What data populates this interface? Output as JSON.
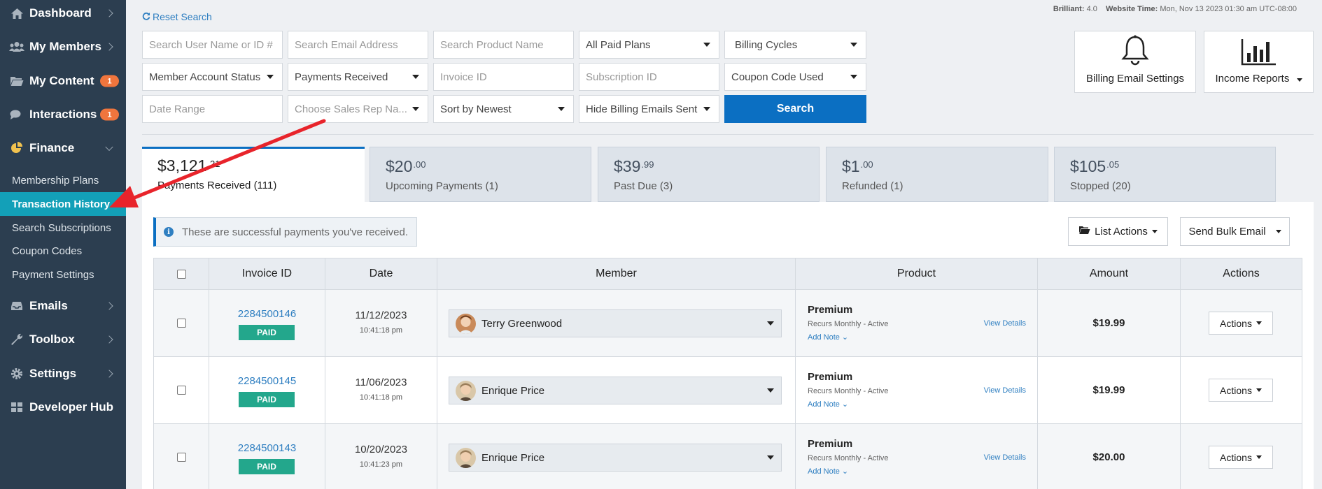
{
  "sidebar": {
    "items": [
      {
        "label": "Dashboard",
        "icon": "home-icon"
      },
      {
        "label": "My Members",
        "icon": "users-icon"
      },
      {
        "label": "My Content",
        "icon": "folder-icon",
        "badge": "1"
      },
      {
        "label": "Interactions",
        "icon": "comments-icon",
        "badge": "1"
      },
      {
        "label": "Finance",
        "icon": "pie-chart-icon"
      },
      {
        "label": "Emails",
        "icon": "inbox-icon"
      },
      {
        "label": "Toolbox",
        "icon": "wrench-icon"
      },
      {
        "label": "Settings",
        "icon": "gear-icon"
      },
      {
        "label": "Developer Hub",
        "icon": "grid-icon"
      }
    ],
    "finance_sub": [
      "Membership Plans",
      "Transaction History",
      "Search Subscriptions",
      "Coupon Codes",
      "Payment Settings"
    ]
  },
  "header": {
    "reset_search": "Reset Search",
    "brilliant_label": "Brilliant:",
    "brilliant_version": "4.0",
    "website_time_label": "Website Time:",
    "website_time": "Mon, Nov 13 2023 01:30 am UTC-08:00"
  },
  "filters": {
    "user_name": "Search User Name or ID #",
    "email": "Search Email Address",
    "product": "Search Product Name",
    "paid_plans": "All Paid Plans",
    "billing_cycles": "Billing Cycles",
    "account_status": "Member Account Status",
    "payments_received": "Payments Received",
    "invoice_id": "Invoice ID",
    "subscription_id": "Subscription ID",
    "coupon_code": "Coupon Code Used",
    "date_range": "Date Range",
    "sales_rep": "Choose Sales Rep Na...",
    "sort": "Sort by Newest",
    "hide_billing": "Hide Billing Emails Sent",
    "search_button": "Search"
  },
  "cards": {
    "billing_email": "Billing Email Settings",
    "income_reports": "Income Reports"
  },
  "tabs": [
    {
      "dollars": "$3,121",
      "cents": ".21",
      "label": "Payments Received (111)"
    },
    {
      "dollars": "$20",
      "cents": ".00",
      "label": "Upcoming Payments (1)"
    },
    {
      "dollars": "$39",
      "cents": ".99",
      "label": "Past Due (3)"
    },
    {
      "dollars": "$1",
      "cents": ".00",
      "label": "Refunded (1)"
    },
    {
      "dollars": "$105",
      "cents": ".05",
      "label": "Stopped (20)"
    }
  ],
  "info_message": "These are successful payments you've received.",
  "list_actions": "List Actions",
  "send_bulk_email": "Send Bulk Email",
  "table": {
    "headers": [
      "Invoice ID",
      "Date",
      "Member",
      "Product",
      "Amount",
      "Actions"
    ],
    "rows": [
      {
        "invoice": "2284500146",
        "status": "PAID",
        "date": "11/12/2023",
        "time": "10:41:18 pm",
        "member": "Terry Greenwood",
        "product": "Premium",
        "recurs": "Recurs Monthly - Active",
        "add_note": "Add Note",
        "view_details": "View Details",
        "amount": "$19.99",
        "actions": "Actions"
      },
      {
        "invoice": "2284500145",
        "status": "PAID",
        "date": "11/06/2023",
        "time": "10:41:18 pm",
        "member": "Enrique Price",
        "product": "Premium",
        "recurs": "Recurs Monthly - Active",
        "add_note": "Add Note",
        "view_details": "View Details",
        "amount": "$19.99",
        "actions": "Actions"
      },
      {
        "invoice": "2284500143",
        "status": "PAID",
        "date": "10/20/2023",
        "time": "10:41:23 pm",
        "member": "Enrique Price",
        "product": "Premium",
        "recurs": "Recurs Monthly - Active",
        "add_note": "Add Note",
        "view_details": "View Details",
        "amount": "$20.00",
        "actions": "Actions"
      }
    ]
  },
  "colors": {
    "sidebar": "#2c3e50",
    "active": "#13a0b8",
    "primary": "#0b6fc2",
    "paid": "#23a78c",
    "badge": "#f0753d",
    "arrow": "#e8242b"
  }
}
